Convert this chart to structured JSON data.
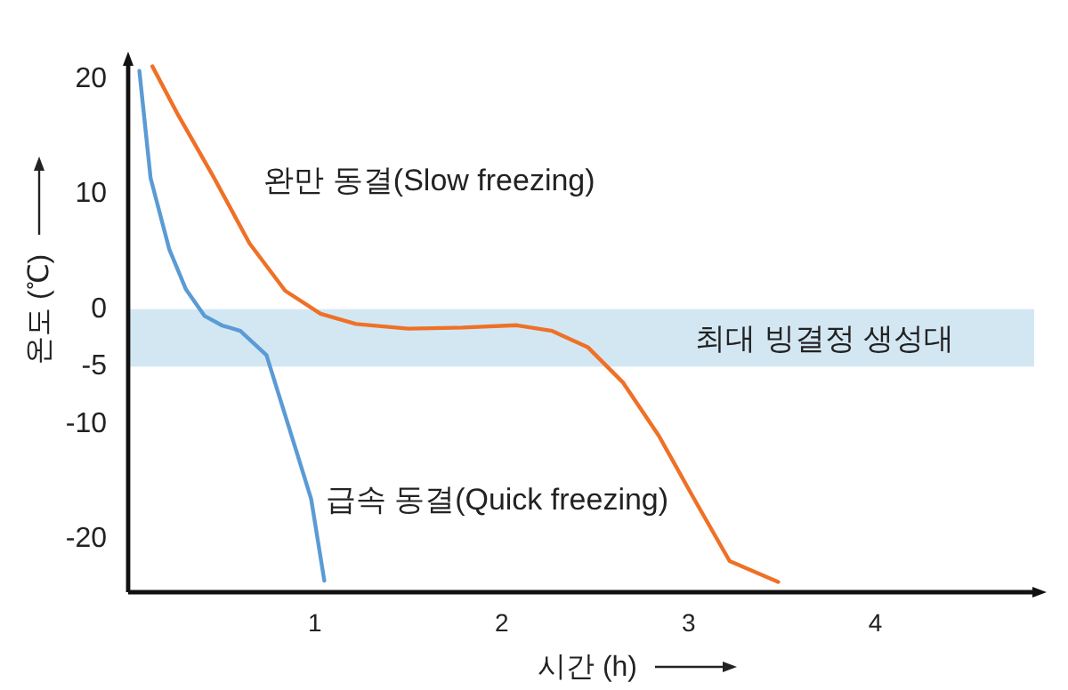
{
  "chart_data": {
    "type": "line",
    "xlabel": "시간 (h)",
    "ylabel": "온도 (℃)",
    "xlim": [
      0,
      4.85
    ],
    "ylim": [
      -24.6,
      21.3
    ],
    "xticks": [
      1,
      2,
      3,
      4
    ],
    "yticks": [
      20,
      10,
      0,
      -5,
      -10,
      -20
    ],
    "grid": false,
    "legend": false,
    "marker": "none",
    "line_style": "solid",
    "bands": [
      {
        "axis": "y",
        "from": -5,
        "to": 0,
        "label": "최대 빙결정 생성대",
        "color": "#d3e7f3"
      }
    ],
    "series": [
      {
        "name": "완만 동결(Slow freezing)",
        "color": "#ee7127",
        "x": [
          0.13,
          0.27,
          0.46,
          0.65,
          0.84,
          1.03,
          1.22,
          1.5,
          1.79,
          2.08,
          2.27,
          2.46,
          2.65,
          2.84,
          3.03,
          3.22,
          3.48
        ],
        "values": [
          21.1,
          16.8,
          11.4,
          5.7,
          1.6,
          -0.4,
          -1.3,
          -1.7,
          -1.6,
          -1.4,
          -1.9,
          -3.3,
          -6.4,
          -11,
          -16.5,
          -21.9,
          -23.7
        ]
      },
      {
        "name": "급속 동결(Quick freezing)",
        "color": "#5b9bd5",
        "x": [
          0.06,
          0.12,
          0.22,
          0.31,
          0.41,
          0.5,
          0.6,
          0.74,
          0.88,
          0.98,
          1.05
        ],
        "values": [
          20.7,
          11.4,
          5.2,
          1.7,
          -0.6,
          -1.4,
          -1.9,
          -4,
          -11.3,
          -16.5,
          -23.6
        ]
      }
    ]
  }
}
